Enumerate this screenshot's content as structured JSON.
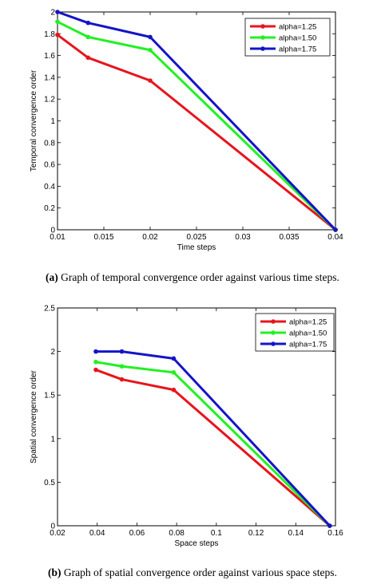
{
  "colors": {
    "red": "#e8141c",
    "green": "#22f022",
    "blue": "#1414c8"
  },
  "chart_data": [
    {
      "type": "line",
      "title": "",
      "xlabel": "Time steps",
      "ylabel": "Temporal convergence order",
      "xlim": [
        0.01,
        0.04
      ],
      "ylim": [
        0,
        2
      ],
      "xticks": [
        0.01,
        0.015,
        0.02,
        0.025,
        0.03,
        0.035,
        0.04
      ],
      "xtick_labels": [
        "0.01",
        "0.015",
        "0.02",
        "0.025",
        "0.03",
        "0.035",
        "0.04"
      ],
      "yticks": [
        0,
        0.2,
        0.4,
        0.6,
        0.8,
        1,
        1.2,
        1.4,
        1.6,
        1.8,
        2
      ],
      "ytick_labels": [
        "0",
        "0.2",
        "0.4",
        "0.6",
        "0.8",
        "1",
        "1.2",
        "1.4",
        "1.6",
        "1.8",
        "2"
      ],
      "grid": false,
      "legend_position": "top-right",
      "series": [
        {
          "name": "alpha=1.25",
          "color": "red",
          "x": [
            0.01,
            0.0133,
            0.02,
            0.04
          ],
          "y": [
            1.79,
            1.58,
            1.37,
            0.0
          ]
        },
        {
          "name": "alpha=1.50",
          "color": "green",
          "x": [
            0.01,
            0.0133,
            0.02,
            0.04
          ],
          "y": [
            1.91,
            1.77,
            1.65,
            0.0
          ]
        },
        {
          "name": "alpha=1.75",
          "color": "blue",
          "x": [
            0.01,
            0.0133,
            0.02,
            0.04
          ],
          "y": [
            2.0,
            1.9,
            1.77,
            0.0
          ]
        }
      ],
      "caption_label": "(a)",
      "caption_text": "Graph of temporal convergence order against various time steps."
    },
    {
      "type": "line",
      "title": "",
      "xlabel": "Space steps",
      "ylabel": "Spatial convergence order",
      "xlim": [
        0.02,
        0.16
      ],
      "ylim": [
        0,
        2.5
      ],
      "xticks": [
        0.02,
        0.04,
        0.06,
        0.08,
        0.1,
        0.12,
        0.14,
        0.16
      ],
      "xtick_labels": [
        "0.02",
        "0.04",
        "0.06",
        "0.08",
        "0.1",
        "0.12",
        "0.14",
        "0.16"
      ],
      "yticks": [
        0,
        0.5,
        1,
        1.5,
        2,
        2.5
      ],
      "ytick_labels": [
        "0",
        "0.5",
        "1",
        "1.5",
        "2",
        "2.5"
      ],
      "grid": false,
      "legend_position": "top-right",
      "series": [
        {
          "name": "alpha=1.25",
          "color": "red",
          "x": [
            0.0393,
            0.0524,
            0.0785,
            0.1571
          ],
          "y": [
            1.79,
            1.68,
            1.56,
            0.0
          ]
        },
        {
          "name": "alpha=1.50",
          "color": "green",
          "x": [
            0.0393,
            0.0524,
            0.0785,
            0.1571
          ],
          "y": [
            1.88,
            1.83,
            1.76,
            0.0
          ]
        },
        {
          "name": "alpha=1.75",
          "color": "blue",
          "x": [
            0.0393,
            0.0524,
            0.0785,
            0.1571
          ],
          "y": [
            2.0,
            2.0,
            1.92,
            0.0
          ]
        }
      ],
      "caption_label": "(b)",
      "caption_text": "Graph of spatial convergence order against various space steps."
    }
  ]
}
